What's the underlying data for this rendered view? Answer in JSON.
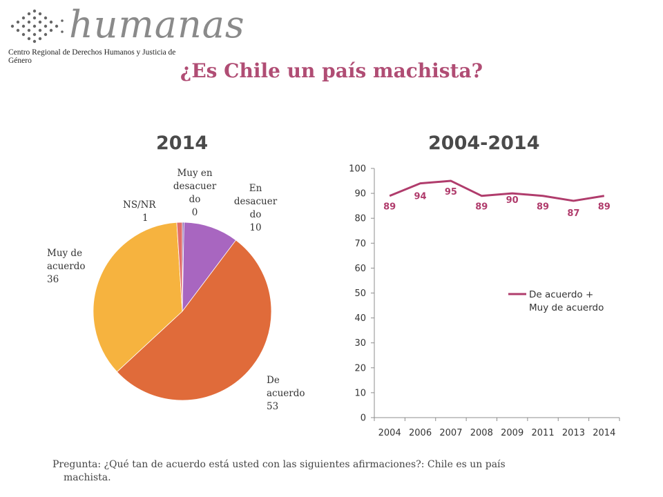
{
  "logo": {
    "wordmark": "humanas",
    "subtitle": "Centro Regional de Derechos Humanos y Justicia de Género",
    "icon": "star-pattern-icon"
  },
  "title": "¿Es Chile un país machista?",
  "charts_titles": {
    "left": "2014",
    "right": "2004-2014"
  },
  "pie_labels": {
    "muy_en_desacuerdo": [
      "Muy en",
      "desacuer",
      "do",
      "0"
    ],
    "en_desacuerdo": [
      "En",
      "desacuer",
      "do",
      "10"
    ],
    "ns_nr": [
      "NS/NR",
      "1"
    ],
    "muy_de_acuerdo": [
      "Muy de",
      "acuerdo",
      "36"
    ],
    "de_acuerdo": [
      "De",
      "acuerdo",
      "53"
    ]
  },
  "footer": {
    "line1": "Pregunta: ¿Qué tan de acuerdo está usted con las siguientes afirmaciones?: Chile es un país",
    "line2": "machista."
  },
  "chart_data": [
    {
      "type": "pie",
      "title": "2014",
      "slices": [
        {
          "label": "Muy en desacuerdo",
          "value": 0.3,
          "display": "0",
          "color": "#7b61a8"
        },
        {
          "label": "En desacuerdo",
          "value": 10,
          "display": "10",
          "color": "#a866c0"
        },
        {
          "label": "De acuerdo",
          "value": 53,
          "display": "53",
          "color": "#e06b3a"
        },
        {
          "label": "Muy de acuerdo",
          "value": 36,
          "display": "36",
          "color": "#f6b33f"
        },
        {
          "label": "NS/NR",
          "value": 1,
          "display": "1",
          "color": "#e26f6a"
        }
      ]
    },
    {
      "type": "line",
      "title": "2004-2014",
      "categories": [
        "2004",
        "2006",
        "2007",
        "2008",
        "2009",
        "2011",
        "2013",
        "2014"
      ],
      "series": [
        {
          "name": "De acuerdo + Muy de acuerdo",
          "values": [
            89,
            94,
            95,
            89,
            90,
            89,
            87,
            89
          ],
          "color": "#b03c6c"
        }
      ],
      "ylim": [
        0,
        100
      ],
      "yticks": [
        0,
        10,
        20,
        30,
        40,
        50,
        60,
        70,
        80,
        90,
        100
      ],
      "legend": {
        "lines": [
          "De acuerdo +",
          "Muy de acuerdo"
        ],
        "position": "right"
      },
      "grid": false
    }
  ]
}
